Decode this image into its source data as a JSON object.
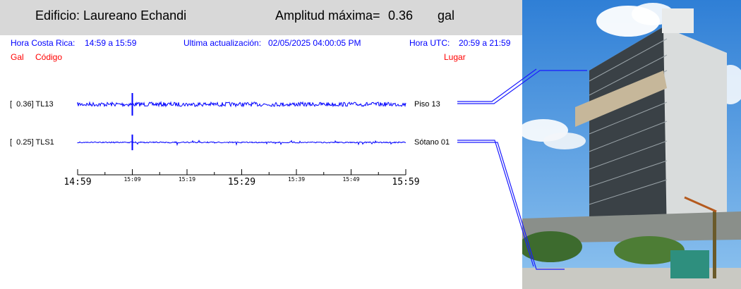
{
  "header": {
    "building_label": "Edificio: Laureano Echandi",
    "amplitude_label": "Amplitud máxima=",
    "amplitude_value": "0.36",
    "amplitude_unit": "gal"
  },
  "info": {
    "cr_label": "Hora Costa Rica:",
    "cr_range": "14:59 a 15:59",
    "update_label": "Ultima actualización:",
    "update_value": "02/05/2025 04:00:05 PM",
    "utc_label": "Hora UTC:",
    "utc_range": "20:59 a 21:59"
  },
  "columns": {
    "gal": "Gal",
    "code": "Código",
    "place": "Lugar"
  },
  "colors": {
    "trace": "#0000ff",
    "info_text": "#0000ff",
    "col_header": "#ff0000",
    "header_bg": "#d8d8d8"
  },
  "chart_data": {
    "type": "line",
    "title": "",
    "x_ticks_major": [
      "14:59",
      "15:29",
      "15:59"
    ],
    "x_ticks_minor": [
      "15:09",
      "15:19",
      "15:39",
      "15:49"
    ],
    "xlim": [
      "14:59",
      "15:59"
    ],
    "series": [
      {
        "name": "TL13",
        "gal": "0.36",
        "label": "[  0.36] TL13",
        "place": "Piso 13",
        "peak_time": "15:09",
        "peak_gal": 0.36
      },
      {
        "name": "TLS1",
        "gal": "0.25",
        "label": "[  0.25] TLS1",
        "place": "Sótano 01",
        "peak_time": "15:09",
        "peak_gal": 0.25
      }
    ]
  }
}
